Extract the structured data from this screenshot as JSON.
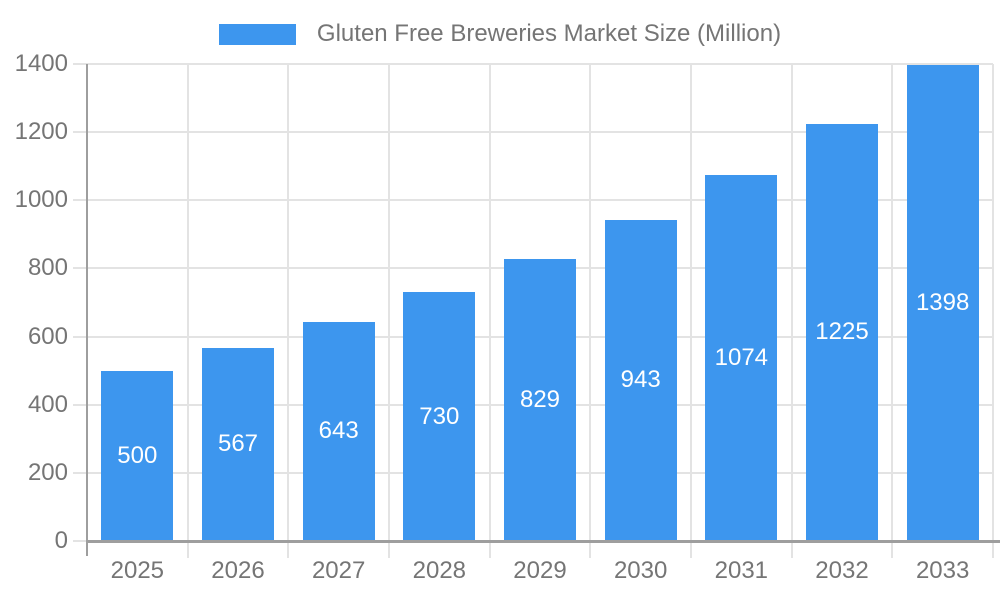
{
  "chart_data": {
    "type": "bar",
    "title": "Gluten Free Breweries Market Size (Million)",
    "legend_entries": [
      "Gluten Free Breweries Market Size (Million)"
    ],
    "legend_position": "top",
    "categories": [
      "2025",
      "2026",
      "2027",
      "2028",
      "2029",
      "2030",
      "2031",
      "2032",
      "2033"
    ],
    "values": [
      500,
      567,
      643,
      730,
      829,
      943,
      1074,
      1225,
      1398
    ],
    "xlabel": "",
    "ylabel": "",
    "ylim": [
      0,
      1400
    ],
    "ytick_step": 200,
    "ytick_labels": [
      "0",
      "200",
      "400",
      "600",
      "800",
      "1000",
      "1200",
      "1400"
    ],
    "grid": true,
    "value_label_position": "inside-center"
  },
  "colors": {
    "bar": "#3D96EE",
    "axis_text": "#757575",
    "legend_text": "#757575",
    "grid_line": "#e3e3e3",
    "axis_line": "#9e9e9e",
    "value_label": "#ffffff",
    "background": "#ffffff"
  }
}
